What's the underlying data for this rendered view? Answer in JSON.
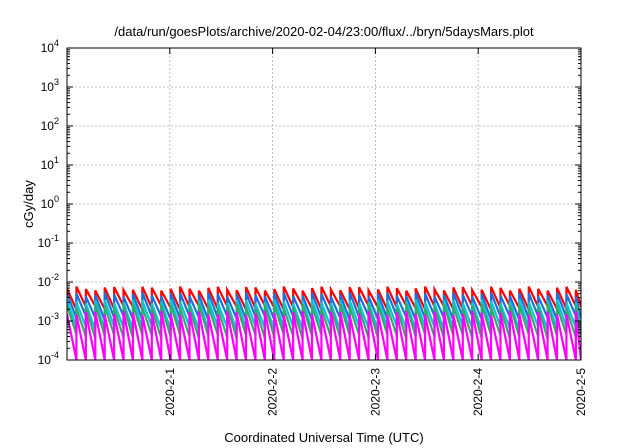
{
  "chart_data": {
    "type": "line",
    "title": "/data/run/goesPlots/archive/2020-02-04/23:00/flux/../bryn/5daysMars.plot",
    "xlabel": "Coordinated Universal Time (UTC)",
    "ylabel": "cGy/day",
    "xlim": [
      "2020-01-31 00:00",
      "2020-02-05 00:00"
    ],
    "x_ticks": [
      "2020-2-1",
      "2020-2-2",
      "2020-2-3",
      "2020-2-4",
      "2020-2-5"
    ],
    "ylim": [
      0.0001,
      10000
    ],
    "y_scale": "log",
    "y_ticks": [
      {
        "value": 0.0001,
        "base": "10",
        "exp": "-4"
      },
      {
        "value": 0.001,
        "base": "10",
        "exp": "-3"
      },
      {
        "value": 0.01,
        "base": "10",
        "exp": "-2"
      },
      {
        "value": 0.1,
        "base": "10",
        "exp": "-1"
      },
      {
        "value": 1,
        "base": "10",
        "exp": "0"
      },
      {
        "value": 10,
        "base": "10",
        "exp": "1"
      },
      {
        "value": 100,
        "base": "10",
        "exp": "2"
      },
      {
        "value": 1000,
        "base": "10",
        "exp": "3"
      },
      {
        "value": 10000,
        "base": "10",
        "exp": "4"
      }
    ],
    "grid": true,
    "pattern": "repeating sawtooth; each cycle jumps up then decays over about 2.2 hours; about 48 cycles from 2020-01-31 00:00 to 2020-02-05 00:00",
    "series": [
      {
        "color": "#ff0000",
        "peak": 0.0068,
        "trough": 0.0022
      },
      {
        "color": "#1f6fd8",
        "peak": 0.0048,
        "trough": 0.0012
      },
      {
        "color": "#00c8d8",
        "peak": 0.0032,
        "trough": 0.00065
      },
      {
        "color": "#33aa66",
        "peak": 0.0024,
        "trough": 0.0004
      },
      {
        "color": "#ff00ff",
        "peak": 0.0016,
        "trough": 8e-05
      }
    ]
  }
}
